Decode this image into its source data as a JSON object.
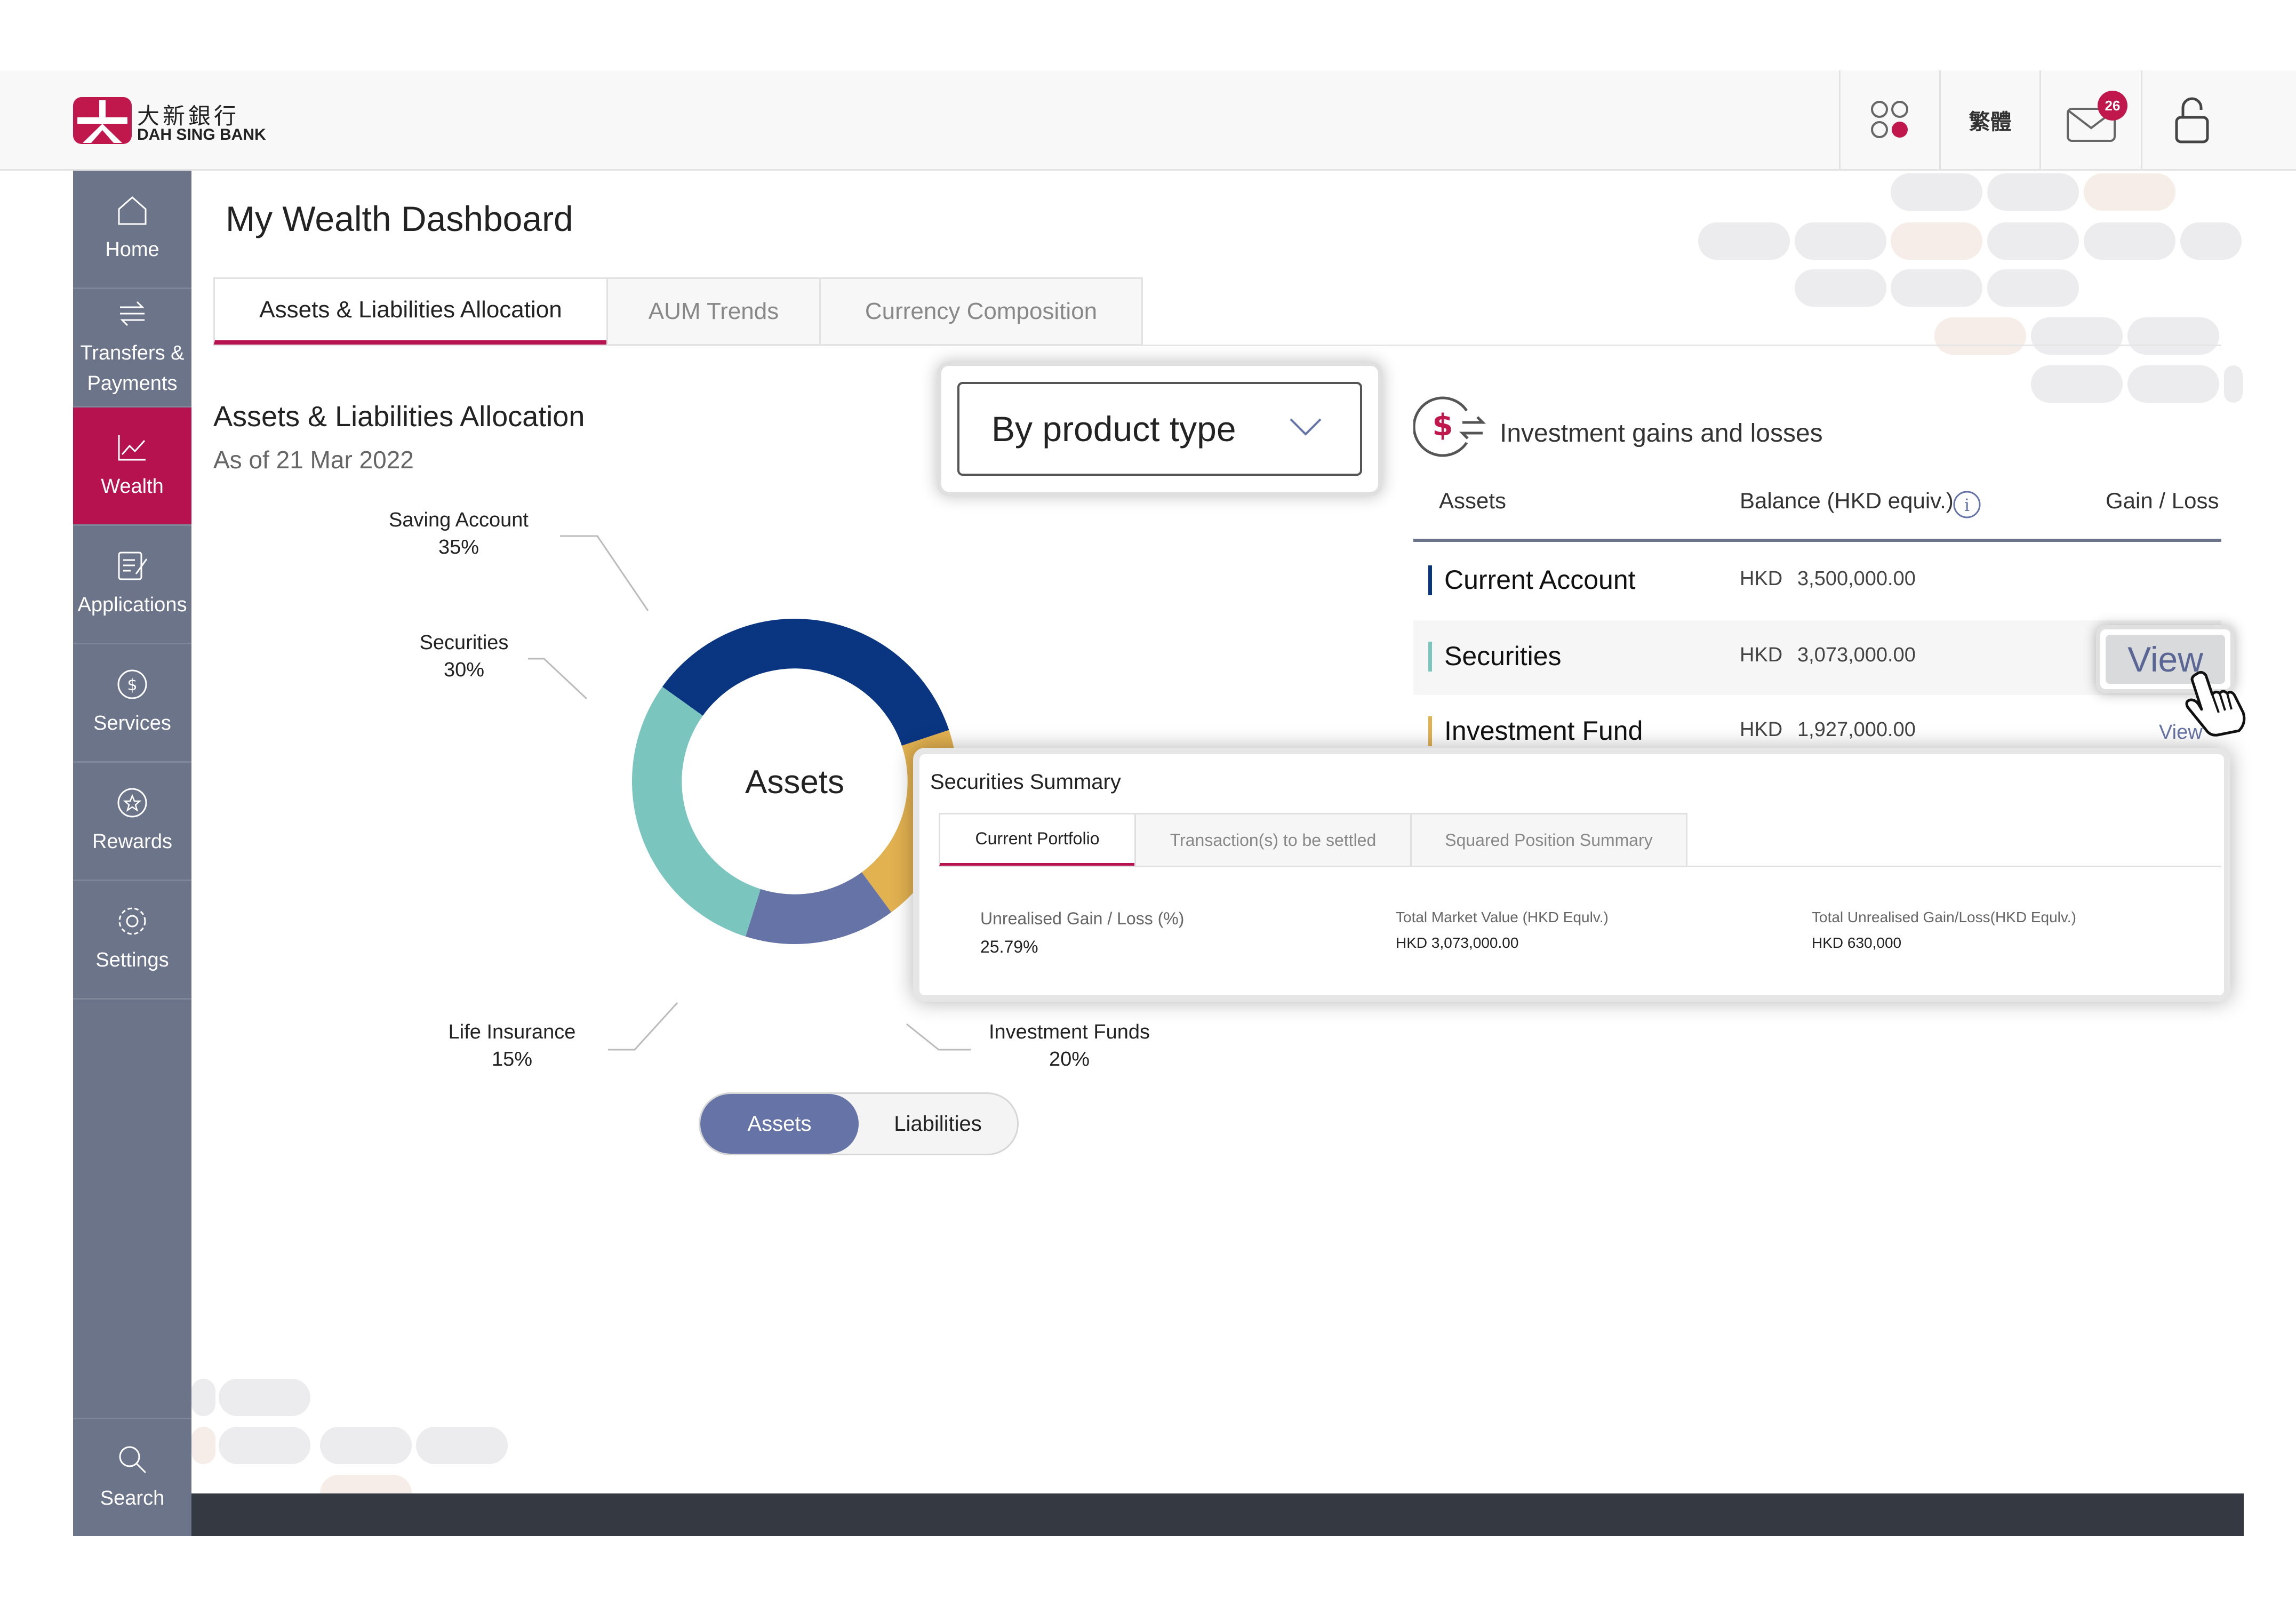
{
  "brand": {
    "name_cn": "大新銀行",
    "name_en": "DAH SING BANK",
    "color": "#c0184c"
  },
  "topbar": {
    "language": "繁體",
    "mail_count": "26",
    "icons": [
      "apps-icon",
      "mail-icon",
      "lock-icon"
    ]
  },
  "sidebar": {
    "items": [
      {
        "label": "Home",
        "icon": "home-icon"
      },
      {
        "label": "Transfers & Payments",
        "icon": "transfer-icon"
      },
      {
        "label": "Wealth",
        "icon": "chart-line-icon",
        "active": true
      },
      {
        "label": "Applications",
        "icon": "form-icon"
      },
      {
        "label": "Services",
        "icon": "dollar-circle-icon"
      },
      {
        "label": "Rewards",
        "icon": "star-circle-icon"
      },
      {
        "label": "Settings",
        "icon": "gear-icon"
      }
    ],
    "search_label": "Search"
  },
  "page": {
    "title": "My Wealth Dashboard",
    "tabs": [
      "Assets & Liabilities Allocation",
      "AUM Trends",
      "Currency Composition"
    ]
  },
  "allocation": {
    "title": "Assets & Liabilities Allocation",
    "date": "As of 21 Mar 2022",
    "filter": "By product type",
    "center_label": "Assets",
    "toggle": [
      "Assets",
      "Liabilities"
    ],
    "labels": [
      {
        "name": "Saving Account",
        "pct": "35%"
      },
      {
        "name": "Securities",
        "pct": "30%"
      },
      {
        "name": "Life Insurance",
        "pct": "15%"
      },
      {
        "name": "Investment Funds",
        "pct": "20%"
      }
    ]
  },
  "chart_data": {
    "type": "pie",
    "categories": [
      "Saving Account",
      "Investment Funds",
      "Life Insurance",
      "Securities"
    ],
    "values": [
      35,
      20,
      15,
      30
    ],
    "colors": [
      "#0a3580",
      "#e2b150",
      "#6573a6",
      "#7ac6bf"
    ],
    "title": "Assets"
  },
  "gains": {
    "title": "Investment gains and losses",
    "headers": {
      "assets": "Assets",
      "balance": "Balance (HKD equiv.)",
      "gain": "Gain / Loss"
    },
    "rows": [
      {
        "name": "Current Account",
        "currency": "HKD",
        "amount": "3,500,000.00",
        "color": "#0a3580"
      },
      {
        "name": "Securities",
        "currency": "HKD",
        "amount": "3,073,000.00",
        "color": "#7ac6bf",
        "action": "View"
      },
      {
        "name": "Investment Fund",
        "currency": "HKD",
        "amount": "1,927,000.00",
        "color": "#e2b150",
        "action": "View"
      }
    ]
  },
  "securities_summary": {
    "title": "Securities Summary",
    "tabs": [
      "Current Portfolio",
      "Transaction(s) to be settled",
      "Squared Position Summary"
    ],
    "fields": [
      {
        "label": "Unrealised Gain / Loss (%)",
        "value": "25.79%"
      },
      {
        "label": "Total Market Value (HKD Equlv.)",
        "value": "HKD 3,073,000.00"
      },
      {
        "label": "Total Unrealised Gain/Loss(HKD Equlv.)",
        "value": "HKD 630,000"
      }
    ]
  }
}
